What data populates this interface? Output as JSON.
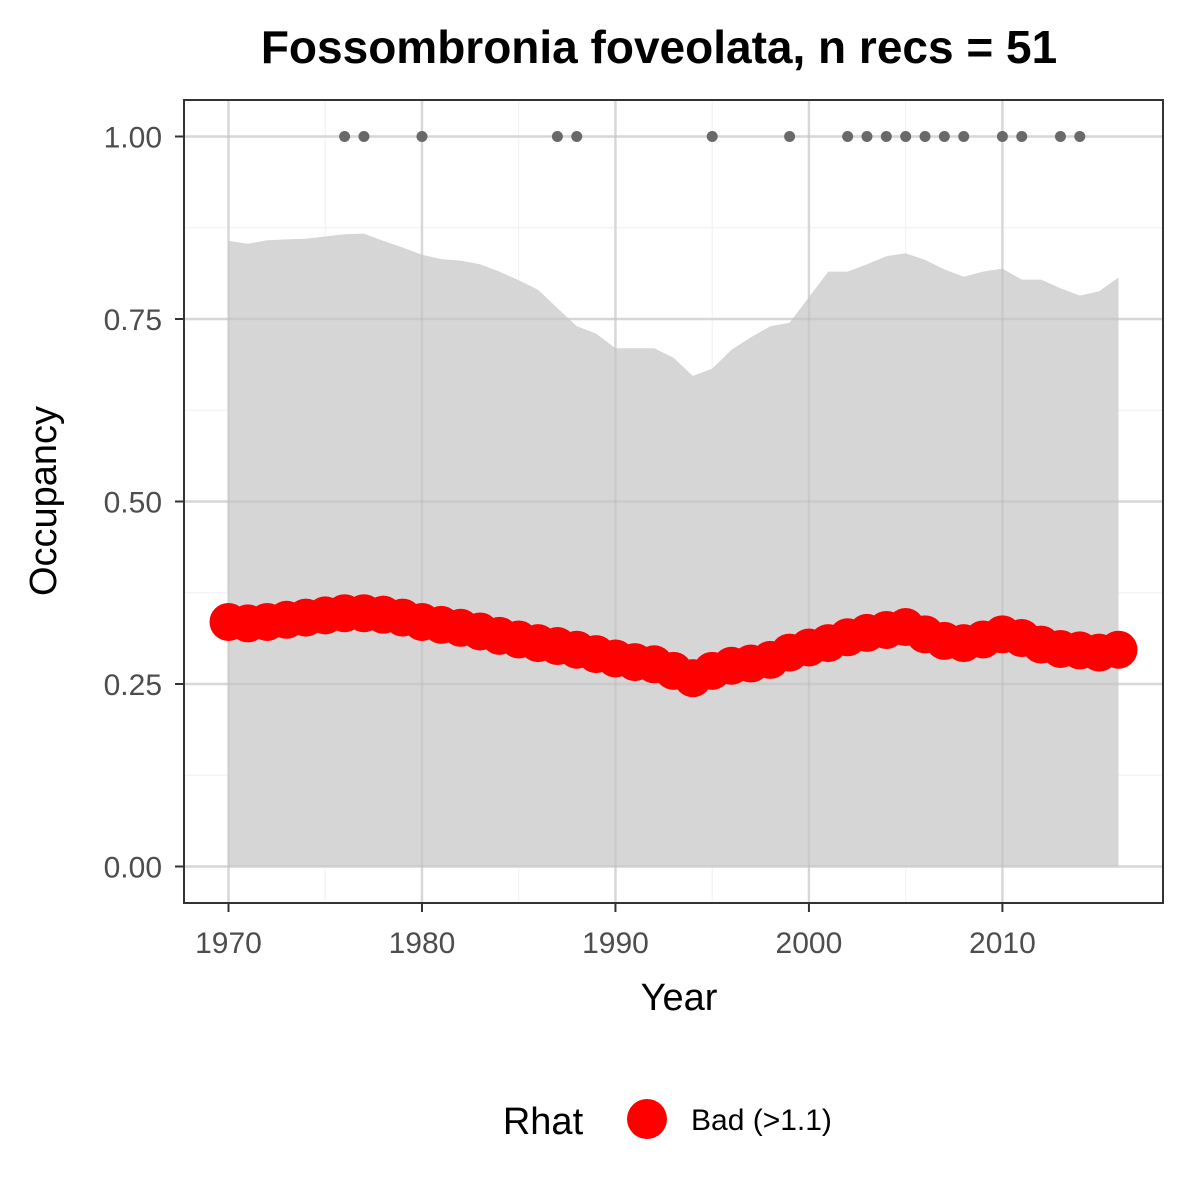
{
  "chart_data": {
    "type": "line",
    "title": "Fossombronia foveolata, n recs = 51",
    "xlabel": "Year",
    "ylabel": "Occupancy",
    "xlim": [
      1967.7,
      2018.3
    ],
    "ylim": [
      -0.05,
      1.05
    ],
    "x_ticks": [
      1970,
      1980,
      1990,
      2000,
      2010
    ],
    "x_tick_labels": [
      "1970",
      "1980",
      "1990",
      "2000",
      "2010"
    ],
    "y_ticks": [
      0,
      0.25,
      0.5,
      0.75,
      1.0
    ],
    "y_tick_labels": [
      "0.00",
      "0.25",
      "0.50",
      "0.75",
      "1.00"
    ],
    "grid": true,
    "x": [
      1970,
      1971,
      1972,
      1973,
      1974,
      1975,
      1976,
      1977,
      1978,
      1979,
      1980,
      1981,
      1982,
      1983,
      1984,
      1985,
      1986,
      1987,
      1988,
      1989,
      1990,
      1991,
      1992,
      1993,
      1994,
      1995,
      1996,
      1997,
      1998,
      1999,
      2000,
      2001,
      2002,
      2003,
      2004,
      2005,
      2006,
      2007,
      2008,
      2009,
      2010,
      2011,
      2012,
      2013,
      2014,
      2015,
      2016
    ],
    "series": [
      {
        "name": "Occupancy",
        "values": [
          0.335,
          0.333,
          0.335,
          0.338,
          0.341,
          0.344,
          0.347,
          0.347,
          0.345,
          0.341,
          0.335,
          0.331,
          0.327,
          0.322,
          0.316,
          0.311,
          0.306,
          0.302,
          0.297,
          0.291,
          0.285,
          0.28,
          0.277,
          0.268,
          0.258,
          0.268,
          0.275,
          0.278,
          0.283,
          0.293,
          0.3,
          0.306,
          0.314,
          0.32,
          0.324,
          0.328,
          0.318,
          0.309,
          0.306,
          0.311,
          0.318,
          0.313,
          0.304,
          0.298,
          0.296,
          0.293,
          0.297
        ],
        "color": "#ff0000"
      }
    ],
    "ribbon": {
      "lower": [
        0.0,
        0.0,
        0.0,
        0.0,
        0.0,
        0.0,
        0.0,
        0.0,
        0.0,
        0.0,
        0.0,
        0.0,
        0.0,
        0.0,
        0.0,
        0.0,
        0.0,
        0.0,
        0.0,
        0.0,
        0.0,
        0.0,
        0.0,
        0.0,
        0.0,
        0.0,
        0.0,
        0.0,
        0.0,
        0.0,
        0.0,
        0.0,
        0.0,
        0.0,
        0.0,
        0.0,
        0.0,
        0.0,
        0.0,
        0.0,
        0.0,
        0.0,
        0.0,
        0.0,
        0.0,
        0.0,
        0.0
      ],
      "upper": [
        0.857,
        0.853,
        0.858,
        0.859,
        0.86,
        0.863,
        0.866,
        0.867,
        0.857,
        0.848,
        0.838,
        0.832,
        0.83,
        0.825,
        0.815,
        0.803,
        0.79,
        0.765,
        0.74,
        0.73,
        0.71,
        0.71,
        0.71,
        0.697,
        0.672,
        0.682,
        0.708,
        0.725,
        0.74,
        0.745,
        0.78,
        0.815,
        0.815,
        0.825,
        0.836,
        0.84,
        0.831,
        0.818,
        0.808,
        0.815,
        0.819,
        0.804,
        0.804,
        0.792,
        0.782,
        0.788,
        0.807
      ],
      "color": "#d6d6d6"
    },
    "record_years": [
      1976,
      1977,
      1980,
      1987,
      1988,
      1995,
      1999,
      2002,
      2003,
      2004,
      2005,
      2006,
      2007,
      2008,
      2010,
      2011,
      2013,
      2014
    ],
    "record_y": 1.0,
    "record_color": "#696969",
    "legend": {
      "title": "Rhat",
      "items": [
        {
          "label": "Bad (>1.1)",
          "color": "#ff0000"
        }
      ],
      "position": "bottom"
    }
  }
}
